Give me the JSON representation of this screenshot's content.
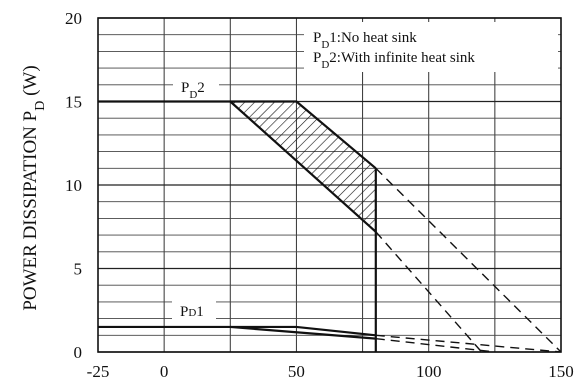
{
  "chart_data": {
    "type": "line",
    "title": "",
    "xlabel": "",
    "ylabel": "POWER DISSIPATION P",
    "ylabel_sub": "D",
    "ylabel_unit": " (W)",
    "xlim": [
      -25,
      150
    ],
    "ylim": [
      0,
      20
    ],
    "x_ticks": [
      -25,
      0,
      50,
      100,
      150
    ],
    "y_ticks": [
      0,
      5,
      10,
      15,
      20
    ],
    "grid": true,
    "legend": {
      "placement": "top-right",
      "entries": [
        {
          "prefix": "P",
          "sub": "D",
          "text": "1:No heat sink"
        },
        {
          "prefix": "P",
          "sub": "D",
          "text": "2:With infinite heat sink"
        }
      ]
    },
    "series": [
      {
        "key": "pd2_upper",
        "style": "solid",
        "points": [
          [
            -25,
            15
          ],
          [
            50,
            15
          ],
          [
            80,
            11
          ]
        ]
      },
      {
        "key": "pd2_upper_ext",
        "style": "dashed",
        "points": [
          [
            80,
            11
          ],
          [
            150,
            0
          ]
        ]
      },
      {
        "key": "pd2_lower",
        "style": "solid",
        "points": [
          [
            25,
            15
          ],
          [
            80,
            7.2
          ]
        ]
      },
      {
        "key": "pd2_lower_ext",
        "style": "dashed",
        "points": [
          [
            80,
            7.2
          ],
          [
            120,
            0
          ]
        ]
      },
      {
        "key": "pd2_vertical",
        "style": "solid",
        "points": [
          [
            80,
            11
          ],
          [
            80,
            0
          ]
        ]
      },
      {
        "key": "pd1_upper",
        "style": "solid",
        "points": [
          [
            -25,
            1.5
          ],
          [
            50,
            1.5
          ],
          [
            80,
            1.0
          ]
        ]
      },
      {
        "key": "pd1_upper_ext",
        "style": "dashed",
        "points": [
          [
            80,
            1.0
          ],
          [
            150,
            0
          ]
        ]
      },
      {
        "key": "pd1_lower",
        "style": "solid",
        "points": [
          [
            25,
            1.5
          ],
          [
            80,
            0.8
          ]
        ]
      },
      {
        "key": "pd1_lower_ext",
        "style": "dashed",
        "points": [
          [
            80,
            0.8
          ],
          [
            125,
            0
          ]
        ]
      }
    ],
    "hatched_region": [
      [
        25,
        15
      ],
      [
        50,
        15
      ],
      [
        80,
        11
      ],
      [
        80,
        7.2
      ]
    ],
    "curve_labels": [
      {
        "prefix": "P",
        "sub": "D",
        "text": "2",
        "x": 2,
        "y": 15
      },
      {
        "prefix": "P",
        "sub": "D",
        "text": "1",
        "x": 2,
        "y": 1.5
      }
    ]
  }
}
